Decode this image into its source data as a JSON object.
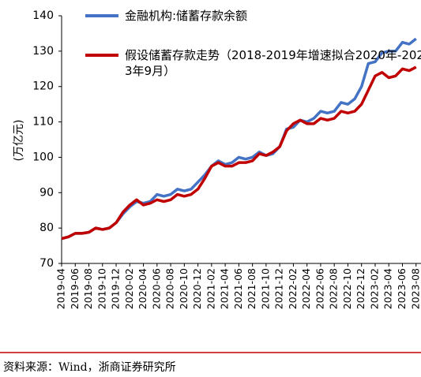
{
  "chart_data": {
    "type": "line",
    "y_label": "(万亿元)",
    "source": "资料来源：Wind，浙商证券研究所",
    "categories": [
      "2019-04",
      null,
      "2019-06",
      null,
      "2019-08",
      null,
      "2019-10",
      null,
      "2019-12",
      null,
      "2020-02",
      null,
      "2020-04",
      null,
      "2020-06",
      null,
      "2020-08",
      null,
      "2020-10",
      null,
      "2020-12",
      null,
      "2021-02",
      null,
      "2021-04",
      null,
      "2021-06",
      null,
      "2021-08",
      null,
      "2021-10",
      null,
      "2021-12",
      null,
      "2022-02",
      null,
      "2022-04",
      null,
      "2022-06",
      null,
      "2022-08",
      null,
      "2022-10",
      null,
      "2022-12",
      null,
      "2023-02",
      null,
      "2023-04",
      null,
      "2023-06",
      null,
      "2023-08"
    ],
    "series": [
      {
        "name": "金融机构:储蓄存款余额",
        "color": "#4472c4",
        "values": [
          77,
          77.5,
          78.5,
          78.5,
          78.8,
          80,
          79.6,
          80,
          81.5,
          84,
          86,
          87.5,
          87,
          87.5,
          89.5,
          89,
          89.5,
          91,
          90.5,
          91,
          93,
          95,
          97.5,
          99,
          98,
          98.5,
          100,
          99.5,
          100,
          101.5,
          100.5,
          101,
          103,
          108,
          108.5,
          110.5,
          110,
          111,
          113,
          112.5,
          113,
          115.5,
          115,
          116.5,
          120,
          126.5,
          127,
          129.5,
          130,
          130,
          132.5,
          132,
          133.5
        ]
      },
      {
        "name": "假设储蓄存款走势（2018-2019年增速拟合2020年-2023年9月）",
        "color": "#c00000",
        "values": [
          77,
          77.5,
          78.5,
          78.5,
          78.8,
          80,
          79.6,
          80,
          81.5,
          84.5,
          86.5,
          88,
          86.5,
          87,
          88,
          87.5,
          88,
          89.5,
          89,
          89.5,
          91,
          94,
          97.5,
          98.5,
          97.5,
          97.5,
          98.5,
          98.5,
          99,
          101,
          100.5,
          101.5,
          103,
          107.5,
          109.5,
          110.5,
          109.5,
          109.5,
          111,
          110.5,
          111,
          113,
          112.5,
          113,
          115,
          119,
          123,
          124,
          122.5,
          123,
          125,
          124.5,
          125.5
        ]
      }
    ],
    "ylim": [
      70,
      140
    ],
    "yticks": [
      70,
      80,
      90,
      100,
      110,
      120,
      130,
      140
    ]
  }
}
